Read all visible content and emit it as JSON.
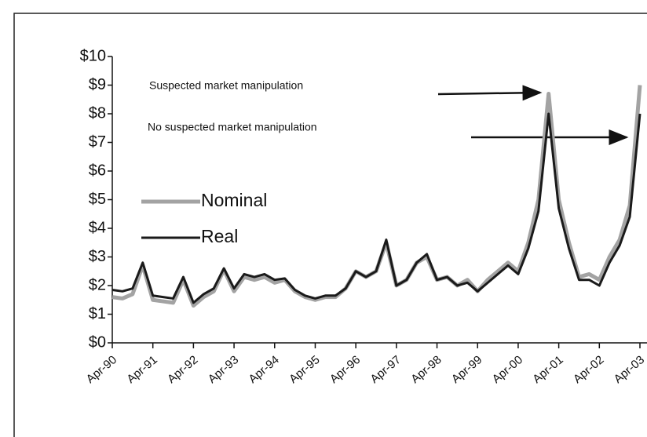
{
  "chart_data": {
    "type": "line",
    "annotations": [
      "Suspected market manipulation",
      "No suspected market manipulation"
    ],
    "categories": [
      "Apr-90",
      null,
      null,
      null,
      "Apr-91",
      null,
      null,
      null,
      "Apr-92",
      null,
      null,
      null,
      "Apr-93",
      null,
      null,
      null,
      "Apr-94",
      null,
      null,
      null,
      "Apr-95",
      null,
      null,
      null,
      "Apr-96",
      null,
      null,
      null,
      "Apr-97",
      null,
      null,
      null,
      "Apr-98",
      null,
      null,
      null,
      "Apr-99",
      null,
      null,
      null,
      "Apr-00",
      null,
      null,
      null,
      "Apr-01",
      null,
      null,
      null,
      "Apr-02",
      null,
      null,
      null,
      "Apr-03"
    ],
    "series": [
      {
        "name": "Nominal",
        "color": "#a3a3a3",
        "values": [
          1.6,
          1.55,
          1.7,
          2.7,
          1.5,
          1.45,
          1.4,
          2.2,
          1.3,
          1.6,
          1.8,
          2.55,
          1.8,
          2.3,
          2.2,
          2.3,
          2.1,
          2.2,
          1.8,
          1.6,
          1.5,
          1.6,
          1.6,
          1.9,
          2.5,
          2.3,
          2.5,
          3.5,
          2.0,
          2.2,
          2.8,
          3.0,
          2.2,
          2.3,
          2.0,
          2.2,
          1.8,
          2.2,
          2.5,
          2.8,
          2.5,
          3.5,
          5.0,
          8.7,
          5.0,
          3.5,
          2.3,
          2.4,
          2.2,
          3.0,
          3.6,
          4.8,
          9.0
        ]
      },
      {
        "name": "Real",
        "color": "#1a1a1a",
        "values": [
          1.85,
          1.8,
          1.9,
          2.8,
          1.65,
          1.6,
          1.55,
          2.3,
          1.4,
          1.7,
          1.9,
          2.6,
          1.9,
          2.4,
          2.3,
          2.4,
          2.2,
          2.25,
          1.85,
          1.65,
          1.55,
          1.65,
          1.65,
          1.9,
          2.5,
          2.3,
          2.5,
          3.6,
          2.0,
          2.2,
          2.8,
          3.1,
          2.2,
          2.3,
          2.0,
          2.1,
          1.8,
          2.1,
          2.4,
          2.7,
          2.4,
          3.3,
          4.6,
          8.0,
          4.7,
          3.3,
          2.2,
          2.2,
          2.0,
          2.8,
          3.4,
          4.4,
          8.0
        ]
      }
    ],
    "ylim": [
      0,
      10
    ],
    "yticks": [
      {
        "value": 0,
        "label": "$0"
      },
      {
        "value": 1,
        "label": "$1"
      },
      {
        "value": 2,
        "label": "$2"
      },
      {
        "value": 3,
        "label": "$3"
      },
      {
        "value": 4,
        "label": "$4"
      },
      {
        "value": 5,
        "label": "$5"
      },
      {
        "value": 6,
        "label": "$6"
      },
      {
        "value": 7,
        "label": "$7"
      },
      {
        "value": 8,
        "label": "$8"
      },
      {
        "value": 9,
        "label": "$9"
      },
      {
        "value": 10,
        "label": "$10"
      }
    ],
    "legend": "left"
  }
}
